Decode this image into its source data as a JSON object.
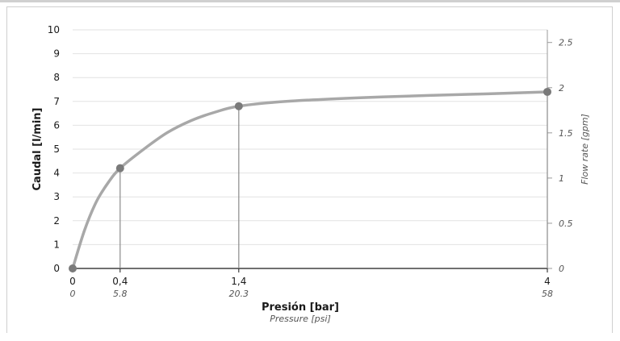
{
  "chart_data": {
    "type": "line",
    "x": [
      0,
      0.4,
      1.4,
      4
    ],
    "x_tick_labels": [
      "0",
      "0,4",
      "1,4",
      "4"
    ],
    "x_secondary_tick_labels": [
      "0",
      "5.8",
      "20.3",
      "58"
    ],
    "xlabel": "Presión [bar]",
    "xlabel_secondary": "Pressure [psi]",
    "ylabel": "Caudal [l/min]",
    "ylabel_secondary": "Flow rate [gpm]",
    "ylim": [
      0,
      10
    ],
    "y_ticks": [
      "0",
      "1",
      "2",
      "3",
      "4",
      "5",
      "6",
      "7",
      "8",
      "9",
      "10"
    ],
    "y2_ticks": [
      "0",
      "0.5",
      "1",
      "1.5",
      "2",
      "2.5"
    ],
    "ylim_secondary": [
      0,
      2.64
    ],
    "series": [
      {
        "values": [
          0,
          4.2,
          6.8,
          7.4
        ]
      }
    ],
    "curve_points": [
      [
        0,
        0
      ],
      [
        0.1,
        1.6
      ],
      [
        0.2,
        2.8
      ],
      [
        0.3,
        3.6
      ],
      [
        0.4,
        4.2
      ],
      [
        0.6,
        5.0
      ],
      [
        0.8,
        5.7
      ],
      [
        1.0,
        6.2
      ],
      [
        1.2,
        6.55
      ],
      [
        1.4,
        6.8
      ],
      [
        1.8,
        7.0
      ],
      [
        2.4,
        7.15
      ],
      [
        3.0,
        7.25
      ],
      [
        3.5,
        7.32
      ],
      [
        4.0,
        7.4
      ]
    ],
    "grid": true,
    "line_color": "#a8a8a8",
    "marker_color": "#7a7a7a"
  }
}
